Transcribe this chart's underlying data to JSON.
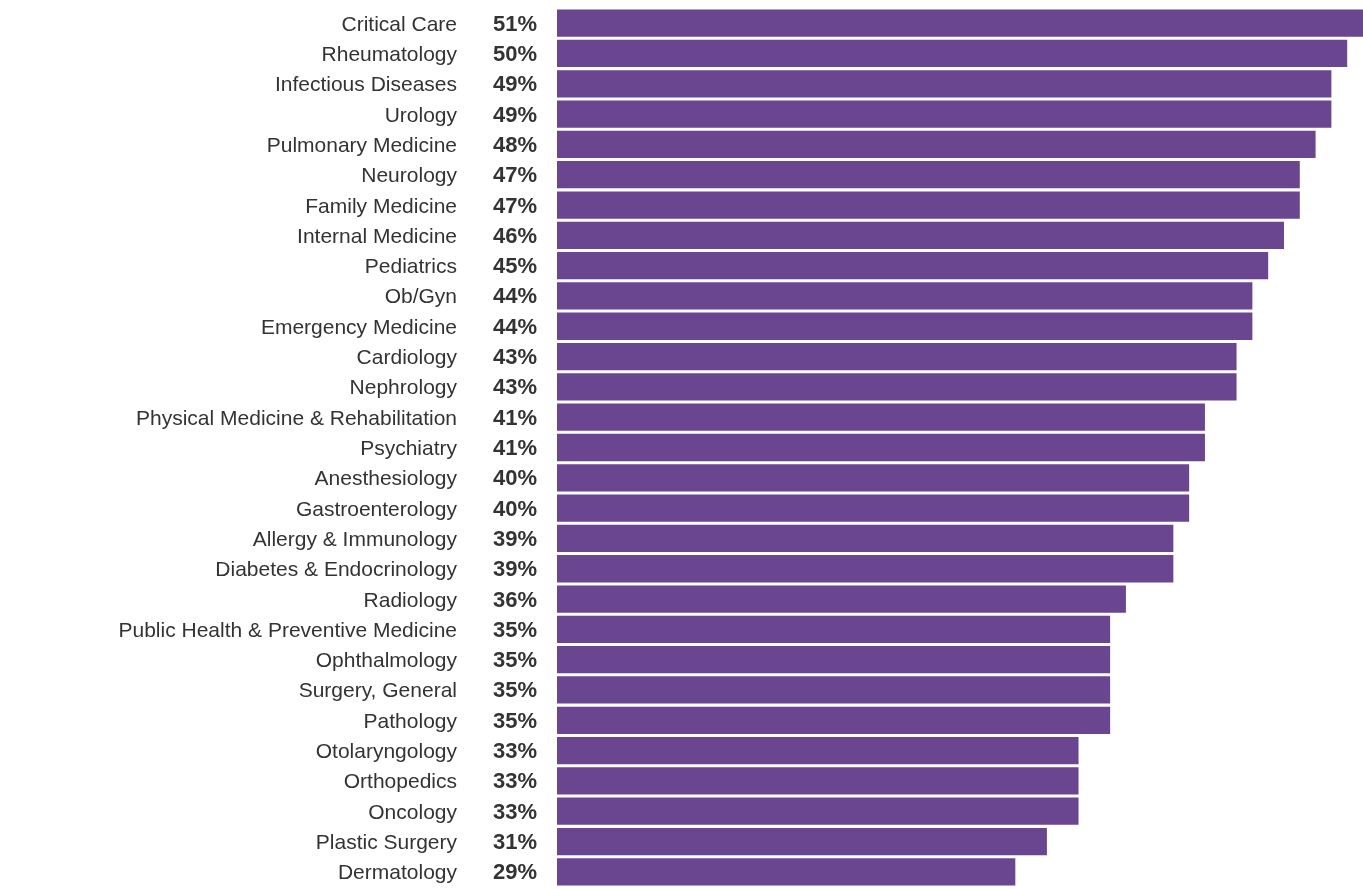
{
  "chart_data": {
    "type": "bar",
    "orientation": "horizontal",
    "color": "#6a4590",
    "categories": [
      "Critical Care",
      "Rheumatology",
      "Infectious Diseases",
      "Urology",
      "Pulmonary Medicine",
      "Neurology",
      "Family Medicine",
      "Internal Medicine",
      "Pediatrics",
      "Ob/Gyn",
      "Emergency Medicine",
      "Cardiology",
      "Nephrology",
      "Physical Medicine & Rehabilitation",
      "Psychiatry",
      "Anesthesiology",
      "Gastroenterology",
      "Allergy & Immunology",
      "Diabetes & Endocrinology",
      "Radiology",
      "Public Health & Preventive Medicine",
      "Ophthalmology",
      "Surgery, General",
      "Pathology",
      "Otolaryngology",
      "Orthopedics",
      "Oncology",
      "Plastic Surgery",
      "Dermatology"
    ],
    "values": [
      51,
      50,
      49,
      49,
      48,
      47,
      47,
      46,
      45,
      44,
      44,
      43,
      43,
      41,
      41,
      40,
      40,
      39,
      39,
      36,
      35,
      35,
      35,
      35,
      33,
      33,
      33,
      31,
      29
    ],
    "value_labels": [
      "51%",
      "50%",
      "49%",
      "49%",
      "48%",
      "47%",
      "47%",
      "46%",
      "45%",
      "44%",
      "44%",
      "43%",
      "43%",
      "41%",
      "41%",
      "40%",
      "40%",
      "39%",
      "39%",
      "36%",
      "35%",
      "35%",
      "35%",
      "35%",
      "33%",
      "33%",
      "33%",
      "31%",
      "29%"
    ]
  }
}
